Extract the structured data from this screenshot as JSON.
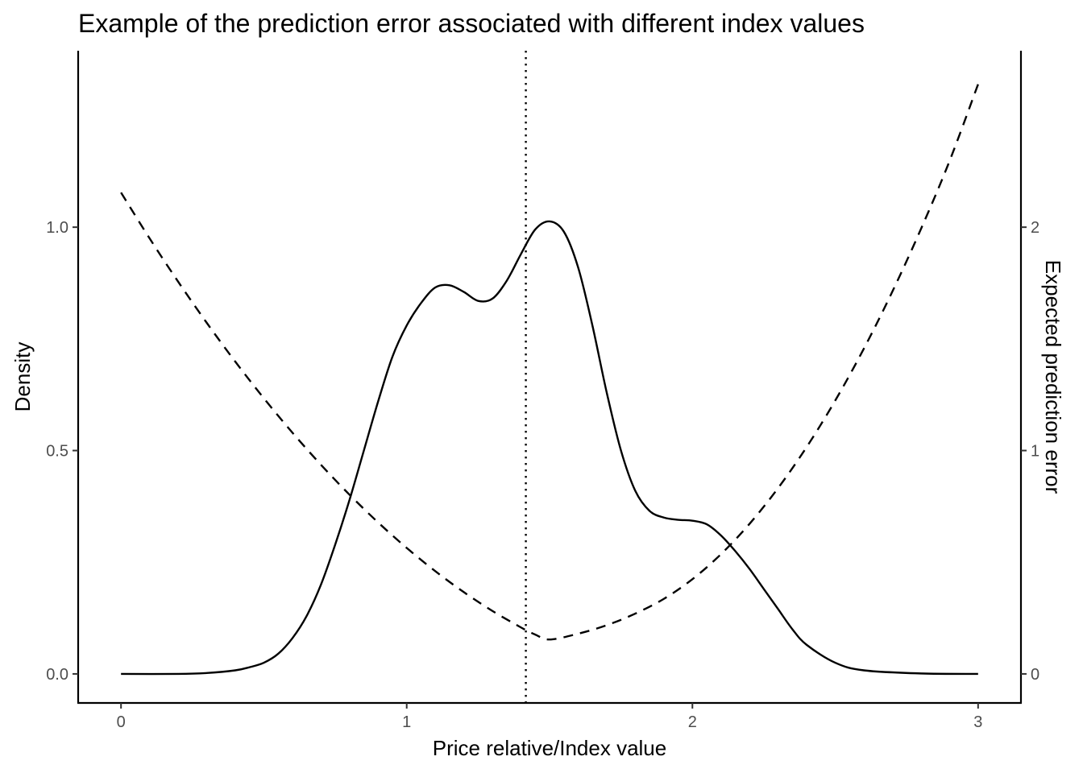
{
  "chart_data": {
    "type": "line",
    "title": "Example of the prediction error associated with different index values",
    "xlabel": "Price relative/Index value",
    "ylabel": "Density",
    "y2label": "Expected prediction error",
    "xlim": [
      -0.15,
      3.15
    ],
    "ylim": [
      -0.065,
      1.395
    ],
    "y2lim": [
      -0.13,
      2.79
    ],
    "x_ticks": [
      0,
      1,
      2,
      3
    ],
    "y_ticks": [
      0.0,
      0.5,
      1.0
    ],
    "y_tick_labels": [
      "0.0",
      "0.5",
      "1.0"
    ],
    "y2_ticks": [
      0,
      1,
      2
    ],
    "grid": false,
    "legend": "none",
    "vline": {
      "x": 1.417,
      "style": "dotted"
    },
    "series": [
      {
        "axis": "left",
        "style": "solid",
        "x": [
          0,
          0.2,
          0.3,
          0.4,
          0.45,
          0.5,
          0.55,
          0.6,
          0.65,
          0.7,
          0.75,
          0.8,
          0.85,
          0.9,
          0.95,
          1.0,
          1.05,
          1.1,
          1.15,
          1.2,
          1.25,
          1.3,
          1.35,
          1.4,
          1.45,
          1.5,
          1.55,
          1.6,
          1.65,
          1.7,
          1.75,
          1.8,
          1.85,
          1.9,
          1.95,
          2.0,
          2.05,
          2.1,
          2.15,
          2.2,
          2.25,
          2.3,
          2.35,
          2.4,
          2.5,
          2.6,
          2.8,
          3.0
        ],
        "values": [
          0.0,
          0.0,
          0.002,
          0.008,
          0.015,
          0.025,
          0.045,
          0.08,
          0.13,
          0.2,
          0.29,
          0.39,
          0.5,
          0.61,
          0.71,
          0.78,
          0.83,
          0.865,
          0.87,
          0.855,
          0.835,
          0.84,
          0.88,
          0.94,
          0.995,
          1.013,
          0.99,
          0.91,
          0.78,
          0.63,
          0.5,
          0.41,
          0.365,
          0.35,
          0.345,
          0.343,
          0.335,
          0.31,
          0.275,
          0.235,
          0.19,
          0.145,
          0.1,
          0.065,
          0.025,
          0.008,
          0.001,
          0.0
        ]
      },
      {
        "axis": "right",
        "style": "dashed",
        "x": [
          0,
          0.1,
          0.2,
          0.3,
          0.4,
          0.5,
          0.6,
          0.7,
          0.8,
          0.9,
          1.0,
          1.1,
          1.2,
          1.3,
          1.4,
          1.45,
          1.5,
          1.6,
          1.7,
          1.8,
          1.9,
          2.0,
          2.1,
          2.2,
          2.3,
          2.4,
          2.5,
          2.6,
          2.7,
          2.8,
          2.9,
          3.0
        ],
        "values": [
          2.155,
          1.95,
          1.756,
          1.572,
          1.398,
          1.234,
          1.08,
          0.936,
          0.802,
          0.678,
          0.564,
          0.46,
          0.366,
          0.282,
          0.208,
          0.176,
          0.154,
          0.18,
          0.218,
          0.27,
          0.336,
          0.424,
          0.536,
          0.672,
          0.832,
          1.016,
          1.224,
          1.456,
          1.712,
          1.992,
          2.296,
          2.64
        ]
      }
    ]
  }
}
